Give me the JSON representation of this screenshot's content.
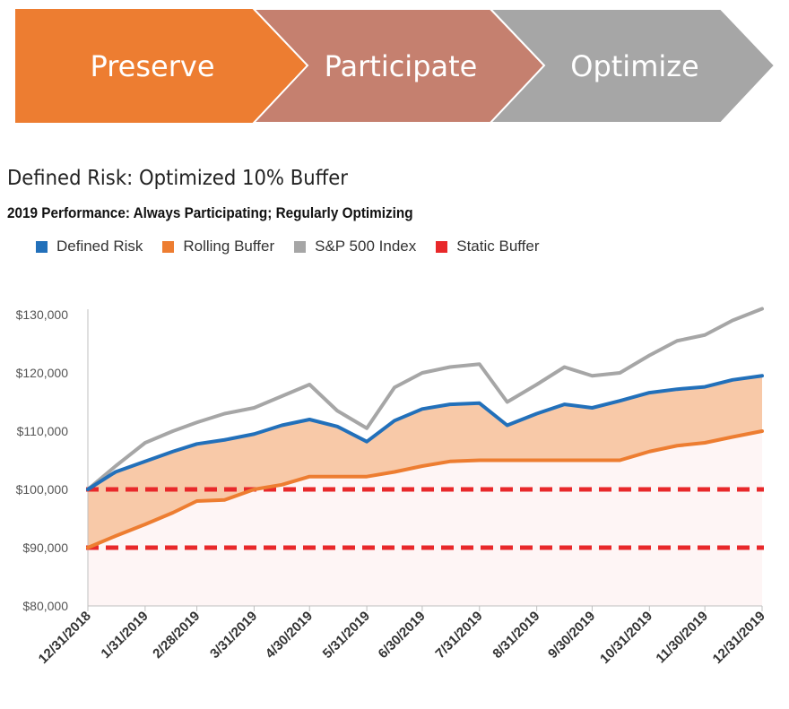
{
  "banner": {
    "steps": [
      {
        "label": "Preserve",
        "color": "#ed7d31"
      },
      {
        "label": "Participate",
        "color": "#c5806f"
      },
      {
        "label": "Optimize",
        "color": "#a6a6a6"
      }
    ]
  },
  "chart_data": {
    "type": "area",
    "title": "Defined Risk: Optimized 10% Buffer",
    "subtitle": "2019 Performance: Always Participating; Regularly Optimizing",
    "ylim": [
      80000,
      130000
    ],
    "y_ticks": [
      "$80,000",
      "$90,000",
      "$100,000",
      "$110,000",
      "$120,000",
      "$130,000"
    ],
    "y_tick_values": [
      80000,
      90000,
      100000,
      110000,
      120000,
      130000
    ],
    "x_ticks": [
      "12/31/2018",
      "1/31/2019",
      "2/28/2019",
      "3/31/2019",
      "4/30/2019",
      "5/31/2019",
      "6/30/2019",
      "7/31/2019",
      "8/31/2019",
      "9/30/2019",
      "10/31/2019",
      "11/30/2019",
      "12/31/2019"
    ],
    "legend_position": "top",
    "grid": false,
    "series": [
      {
        "name": "Defined Risk",
        "color": "#2270ba",
        "x": [
          "12/31/2018",
          "1/15/2019",
          "1/31/2019",
          "2/15/2019",
          "2/28/2019",
          "3/15/2019",
          "3/31/2019",
          "4/15/2019",
          "4/30/2019",
          "5/15/2019",
          "5/31/2019",
          "6/15/2019",
          "6/30/2019",
          "7/15/2019",
          "7/31/2019",
          "8/15/2019",
          "8/31/2019",
          "9/15/2019",
          "9/30/2019",
          "10/15/2019",
          "10/31/2019",
          "11/15/2019",
          "11/30/2019",
          "12/15/2019",
          "12/31/2019"
        ],
        "values": [
          100000,
          103000,
          104800,
          106500,
          107800,
          108500,
          109500,
          111000,
          112000,
          110800,
          108200,
          111800,
          113800,
          114600,
          114800,
          111000,
          113000,
          114600,
          114000,
          115200,
          116600,
          117200,
          117600,
          118800,
          119500
        ]
      },
      {
        "name": "Rolling Buffer",
        "color": "#ed7d31",
        "x": [
          "12/31/2018",
          "1/15/2019",
          "1/31/2019",
          "2/15/2019",
          "2/28/2019",
          "3/15/2019",
          "3/31/2019",
          "4/15/2019",
          "4/30/2019",
          "5/15/2019",
          "5/31/2019",
          "6/15/2019",
          "6/30/2019",
          "7/15/2019",
          "7/31/2019",
          "8/15/2019",
          "8/31/2019",
          "9/15/2019",
          "9/30/2019",
          "10/15/2019",
          "10/31/2019",
          "11/15/2019",
          "11/30/2019",
          "12/15/2019",
          "12/31/2019"
        ],
        "values": [
          90000,
          92000,
          94000,
          96000,
          98000,
          98200,
          100000,
          100800,
          102200,
          102200,
          102200,
          103000,
          104000,
          104800,
          105000,
          105000,
          105000,
          105000,
          105000,
          105000,
          106500,
          107500,
          108000,
          109000,
          110000
        ]
      },
      {
        "name": "S&P 500 Index",
        "color": "#a6a6a6",
        "x": [
          "12/31/2018",
          "1/15/2019",
          "1/31/2019",
          "2/15/2019",
          "2/28/2019",
          "3/15/2019",
          "3/31/2019",
          "4/15/2019",
          "4/30/2019",
          "5/15/2019",
          "5/31/2019",
          "6/15/2019",
          "6/30/2019",
          "7/15/2019",
          "7/31/2019",
          "8/15/2019",
          "8/31/2019",
          "9/15/2019",
          "9/30/2019",
          "10/15/2019",
          "10/31/2019",
          "11/15/2019",
          "11/30/2019",
          "12/15/2019",
          "12/31/2019"
        ],
        "values": [
          100000,
          104000,
          108000,
          110000,
          111500,
          113000,
          114000,
          116000,
          118000,
          113500,
          110500,
          117500,
          120000,
          121000,
          121500,
          115000,
          118000,
          121000,
          119500,
          120000,
          123000,
          125500,
          126500,
          129000,
          131000
        ]
      },
      {
        "name": "Static Buffer",
        "color": "#e8282a",
        "levels": [
          100000,
          90000
        ]
      }
    ]
  }
}
